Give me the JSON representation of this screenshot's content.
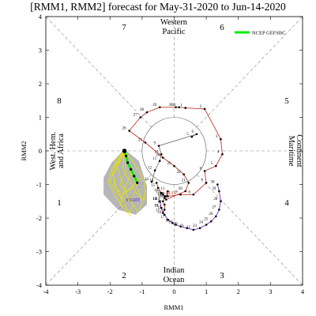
{
  "chart_data": {
    "type": "line",
    "title": "[RMM1, RMM2] forecast for May-31-2020 to Jun-14-2020",
    "xlabel": "RMM1",
    "ylabel": "RMM2",
    "xlim": [
      -4,
      4
    ],
    "ylim": [
      -4,
      4
    ],
    "xticks": [
      "-4",
      "-3",
      "-2",
      "-1",
      "0",
      "1",
      "2",
      "3",
      "4"
    ],
    "yticks": [
      "-4",
      "-3",
      "-2",
      "-1",
      "0",
      "1",
      "2",
      "3",
      "4"
    ],
    "phases": [
      "1",
      "2",
      "3",
      "4",
      "5",
      "6",
      "7",
      "8"
    ],
    "regions": {
      "western_pacific": [
        "Western",
        "Pacific"
      ],
      "maritime_continent": [
        "Maritime",
        "Continent"
      ],
      "indian_ocean": [
        "Indian",
        "Ocean"
      ],
      "west_hem_africa": [
        "West. Hem.",
        "and Africa"
      ]
    },
    "legend": {
      "label": "NCEP GEFSBC",
      "color": "#00ee00",
      "placement": "top-right"
    },
    "colors": {
      "april": "#777777",
      "may": "#c0392b",
      "march_june": "#6a2fb0",
      "forecast": "#00ee00",
      "ensemble": "#e6e600",
      "spread": "#a9a9a9"
    },
    "annotations": {
      "start": "START",
      "may": "MAY"
    },
    "observed_april": {
      "days": [
        "5",
        "6",
        "9",
        "10",
        "11",
        "12",
        "13"
      ],
      "x": [
        0.55,
        0.7,
        -0.48,
        -0.4,
        -0.45,
        -0.6,
        -0.7
      ],
      "y": [
        0.42,
        0.5,
        0.15,
        -0.1,
        -0.3,
        -0.58,
        -0.92
      ]
    },
    "observed_may": {
      "days": [
        "14",
        "15",
        "16",
        "17",
        "18",
        "19",
        "20",
        "21",
        "22",
        "23",
        "24",
        "25",
        "26",
        "27",
        "28",
        "29",
        "30",
        "31",
        "1",
        "2",
        "3",
        "4",
        "5",
        "6",
        "7",
        "8",
        "9",
        "10",
        "11",
        "12",
        "13",
        "14",
        "15",
        "16",
        "17",
        "18",
        "19"
      ],
      "x": [
        -0.55,
        -0.5,
        -0.4,
        -0.35,
        -0.3,
        -0.25,
        0.35,
        0.45,
        0.3,
        0.0,
        -0.35,
        -0.9,
        -1.4,
        -1.05,
        -0.85,
        -0.45,
        0.05,
        0.15,
        0.35,
        0.95,
        1.45,
        1.5,
        1.3,
        0.95,
        1.0,
        0.6,
        0.2,
        -0.2,
        -0.2,
        -0.25,
        -0.3,
        -0.35,
        -0.3,
        -0.3,
        -0.35,
        -0.4,
        -0.45
      ],
      "y": [
        -0.95,
        -1.1,
        -1.25,
        -1.3,
        -1.35,
        -1.45,
        -1.2,
        -0.95,
        -0.7,
        -0.45,
        -0.2,
        0.25,
        0.6,
        1.0,
        1.15,
        1.3,
        1.3,
        1.3,
        1.28,
        1.25,
        0.35,
        -0.1,
        -0.45,
        -0.6,
        -0.95,
        -1.3,
        -1.3,
        -1.35,
        -1.2,
        -1.35,
        -1.4,
        -1.5,
        -1.6,
        -1.75,
        -1.85,
        -1.7,
        -1.5
      ]
    },
    "observed_june": {
      "days": [
        "14",
        "15",
        "16",
        "17",
        "18",
        "19",
        "20",
        "21",
        "22",
        "23",
        "24",
        "25",
        "26",
        "27",
        "28",
        "29",
        "30"
      ],
      "x": [
        -0.45,
        -0.4,
        -0.3,
        -0.2,
        -0.05,
        0.05,
        0.2,
        0.4,
        0.6,
        0.8,
        1.0,
        1.15,
        1.3,
        1.4,
        1.45,
        1.4,
        1.35
      ],
      "y": [
        -1.5,
        -1.7,
        -1.9,
        -2.05,
        -2.15,
        -2.2,
        -2.25,
        -2.3,
        -2.35,
        -2.3,
        -2.2,
        -2.1,
        -1.95,
        -1.75,
        -1.5,
        -1.2,
        -1.0
      ]
    },
    "forecast_mean": {
      "x": [
        -1.55,
        -1.5,
        -1.45,
        -1.35,
        -1.25,
        -1.15
      ],
      "y": [
        0.0,
        -0.15,
        -0.35,
        -0.55,
        -0.75,
        -0.95
      ]
    },
    "ensemble_members": [
      {
        "x": [
          -1.55,
          -1.7,
          -1.9,
          -1.85,
          -1.6,
          -1.3
        ],
        "y": [
          0.0,
          -0.35,
          -0.7,
          -1.05,
          -1.3,
          -1.1
        ]
      },
      {
        "x": [
          -1.55,
          -1.8,
          -2.0,
          -1.75,
          -1.45,
          -1.2
        ],
        "y": [
          0.0,
          -0.4,
          -0.9,
          -1.3,
          -1.5,
          -1.2
        ]
      },
      {
        "x": [
          -1.55,
          -1.4,
          -1.25,
          -1.1,
          -1.0,
          -1.1
        ],
        "y": [
          0.0,
          -0.45,
          -0.85,
          -1.2,
          -1.55,
          -1.75
        ]
      },
      {
        "x": [
          -1.55,
          -1.6,
          -1.35,
          -1.15,
          -0.95,
          -0.9
        ],
        "y": [
          0.0,
          -0.55,
          -0.95,
          -1.3,
          -1.45,
          -1.25
        ]
      },
      {
        "x": [
          -1.55,
          -1.85,
          -1.65,
          -1.45,
          -1.2,
          -1.15
        ],
        "y": [
          0.0,
          -0.3,
          -0.85,
          -1.4,
          -1.7,
          -1.85
        ]
      },
      {
        "x": [
          -1.55,
          -1.3,
          -1.1,
          -0.95,
          -0.9,
          -0.95
        ],
        "y": [
          0.0,
          -0.3,
          -0.6,
          -0.9,
          -1.2,
          -1.5
        ]
      },
      {
        "x": [
          -1.55,
          -1.95,
          -1.8,
          -1.6,
          -1.4,
          -1.25
        ],
        "y": [
          0.0,
          -0.55,
          -1.1,
          -1.5,
          -1.85,
          -1.6
        ]
      },
      {
        "x": [
          -1.55,
          -1.5,
          -1.7,
          -1.5,
          -1.3,
          -1.05
        ],
        "y": [
          0.0,
          -0.6,
          -1.0,
          -1.2,
          -1.05,
          -0.8
        ]
      },
      {
        "x": [
          -1.55,
          -1.65,
          -1.95,
          -2.05,
          -1.8,
          -1.6
        ],
        "y": [
          0.0,
          -0.25,
          -0.55,
          -0.95,
          -1.4,
          -1.65
        ]
      },
      {
        "x": [
          -1.55,
          -1.35,
          -1.55,
          -1.7,
          -1.5,
          -1.35
        ],
        "y": [
          0.0,
          -0.65,
          -1.15,
          -1.55,
          -1.8,
          -1.95
        ]
      }
    ],
    "spread_polygon": {
      "x": [
        -1.55,
        -1.95,
        -2.2,
        -2.2,
        -1.75,
        -1.2,
        -0.85,
        -0.85,
        -1.1
      ],
      "y": [
        0.05,
        -0.35,
        -0.8,
        -1.3,
        -1.75,
        -1.9,
        -1.6,
        -1.05,
        -0.3
      ]
    }
  }
}
